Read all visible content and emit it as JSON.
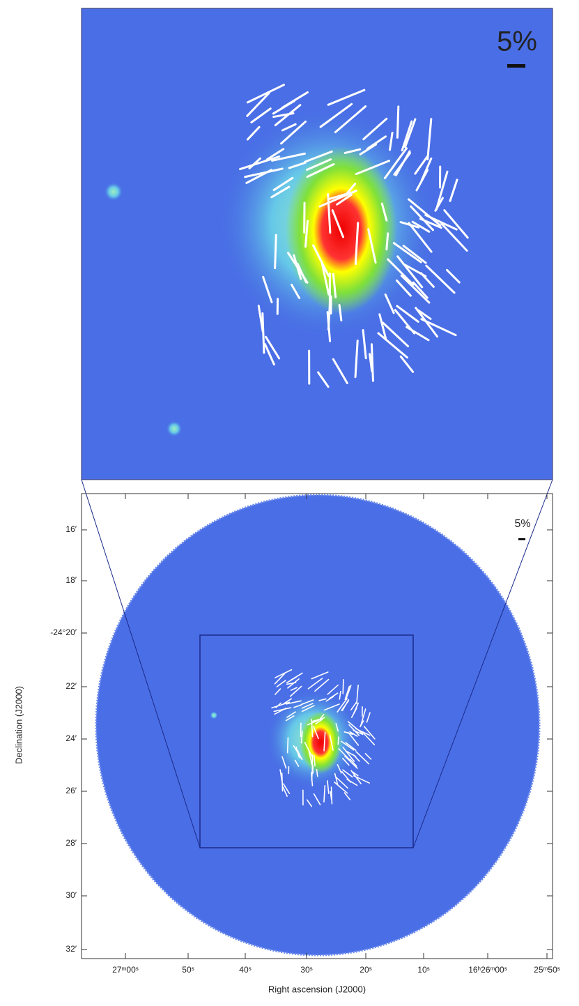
{
  "top_panel": {
    "scale_label": "5%"
  },
  "bottom_panel": {
    "scale_label": "5%",
    "x_axis": {
      "label": "Right ascension (J2000)",
      "ticks": [
        "27ᵐ00ˢ",
        "50ˢ",
        "40ˢ",
        "30ˢ",
        "20ˢ",
        "10ˢ",
        "16ʰ26ᵐ00ˢ",
        "25ᵐ50ˢ"
      ]
    },
    "y_axis": {
      "label": "Declination (J2000)",
      "ticks": [
        "16′",
        "18′",
        "-24°20′",
        "22′",
        "24′",
        "26′",
        "28′",
        "30′",
        "32′"
      ]
    }
  }
}
